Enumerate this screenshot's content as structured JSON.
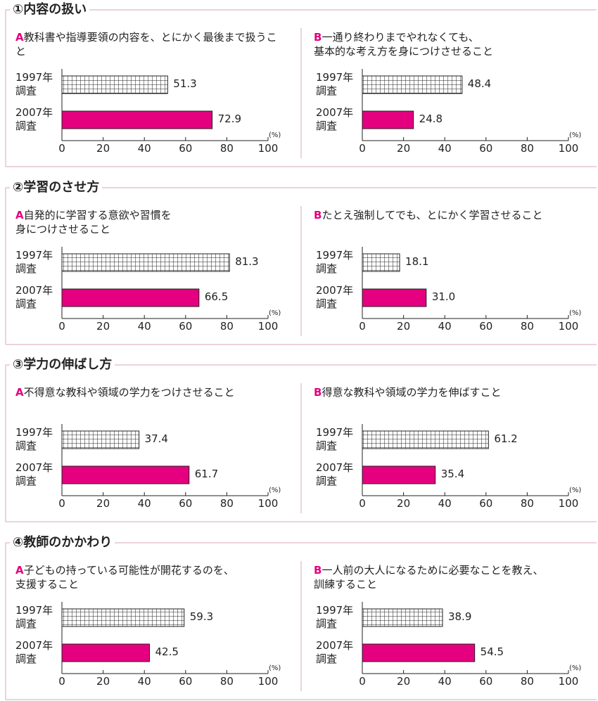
{
  "sections": [
    "①内容の扱い",
    "②学習のさせ方",
    "③学力の伸ばし方",
    "④教師のかかわり"
  ],
  "chart_data": [
    {
      "type": "bar",
      "label": "A",
      "title": "教科書や指導要領の内容を、とにかく最後まで扱うこと",
      "categories": [
        "1997年\n調査",
        "2007年\n調査"
      ],
      "values": [
        51.3,
        72.9
      ],
      "value_labels": [
        "51.3",
        "72.9"
      ],
      "colors": [
        "#ffffff",
        "#e4007f"
      ],
      "hatch": [
        true,
        false
      ],
      "xlim": [
        0,
        100
      ],
      "xticks": [
        0,
        20,
        40,
        60,
        80,
        100
      ],
      "xlabel": "(%)"
    },
    {
      "type": "bar",
      "label": "B",
      "title": "一通り終わりまでやれなくても、\n基本的な考え方を身につけさせること",
      "categories": [
        "1997年\n調査",
        "2007年\n調査"
      ],
      "values": [
        48.4,
        24.8
      ],
      "value_labels": [
        "48.4",
        "24.8"
      ],
      "colors": [
        "#ffffff",
        "#e4007f"
      ],
      "hatch": [
        true,
        false
      ],
      "xlim": [
        0,
        100
      ],
      "xticks": [
        0,
        20,
        40,
        60,
        80,
        100
      ],
      "xlabel": "(%)"
    },
    {
      "type": "bar",
      "label": "A",
      "title": "自発的に学習する意欲や習慣を\n身につけさせること",
      "categories": [
        "1997年\n調査",
        "2007年\n調査"
      ],
      "values": [
        81.3,
        66.5
      ],
      "value_labels": [
        "81.3",
        "66.5"
      ],
      "colors": [
        "#ffffff",
        "#e4007f"
      ],
      "hatch": [
        true,
        false
      ],
      "xlim": [
        0,
        100
      ],
      "xticks": [
        0,
        20,
        40,
        60,
        80,
        100
      ],
      "xlabel": "(%)"
    },
    {
      "type": "bar",
      "label": "B",
      "title": "たとえ強制してでも、とにかく学習させること",
      "categories": [
        "1997年\n調査",
        "2007年\n調査"
      ],
      "values": [
        18.1,
        31.0
      ],
      "value_labels": [
        "18.1",
        "31.0"
      ],
      "colors": [
        "#ffffff",
        "#e4007f"
      ],
      "hatch": [
        true,
        false
      ],
      "xlim": [
        0,
        100
      ],
      "xticks": [
        0,
        20,
        40,
        60,
        80,
        100
      ],
      "xlabel": "(%)"
    },
    {
      "type": "bar",
      "label": "A",
      "title": "不得意な教科や領域の学力をつけさせること",
      "categories": [
        "1997年\n調査",
        "2007年\n調査"
      ],
      "values": [
        37.4,
        61.7
      ],
      "value_labels": [
        "37.4",
        "61.7"
      ],
      "colors": [
        "#ffffff",
        "#e4007f"
      ],
      "hatch": [
        true,
        false
      ],
      "xlim": [
        0,
        100
      ],
      "xticks": [
        0,
        20,
        40,
        60,
        80,
        100
      ],
      "xlabel": "(%)"
    },
    {
      "type": "bar",
      "label": "B",
      "title": "得意な教科や領域の学力を伸ばすこと",
      "categories": [
        "1997年\n調査",
        "2007年\n調査"
      ],
      "values": [
        61.2,
        35.4
      ],
      "value_labels": [
        "61.2",
        "35.4"
      ],
      "colors": [
        "#ffffff",
        "#e4007f"
      ],
      "hatch": [
        true,
        false
      ],
      "xlim": [
        0,
        100
      ],
      "xticks": [
        0,
        20,
        40,
        60,
        80,
        100
      ],
      "xlabel": "(%)"
    },
    {
      "type": "bar",
      "label": "A",
      "title": "子どもの持っている可能性が開花するのを、\n支援すること",
      "categories": [
        "1997年\n調査",
        "2007年\n調査"
      ],
      "values": [
        59.3,
        42.5
      ],
      "value_labels": [
        "59.3",
        "42.5"
      ],
      "colors": [
        "#ffffff",
        "#e4007f"
      ],
      "hatch": [
        true,
        false
      ],
      "xlim": [
        0,
        100
      ],
      "xticks": [
        0,
        20,
        40,
        60,
        80,
        100
      ],
      "xlabel": "(%)"
    },
    {
      "type": "bar",
      "label": "B",
      "title": "一人前の大人になるために必要なことを教え、\n訓練すること",
      "categories": [
        "1997年\n調査",
        "2007年\n調査"
      ],
      "values": [
        38.9,
        54.5
      ],
      "value_labels": [
        "38.9",
        "54.5"
      ],
      "colors": [
        "#ffffff",
        "#e4007f"
      ],
      "hatch": [
        true,
        false
      ],
      "xlim": [
        0,
        100
      ],
      "xticks": [
        0,
        20,
        40,
        60,
        80,
        100
      ],
      "xlabel": "(%)"
    }
  ]
}
